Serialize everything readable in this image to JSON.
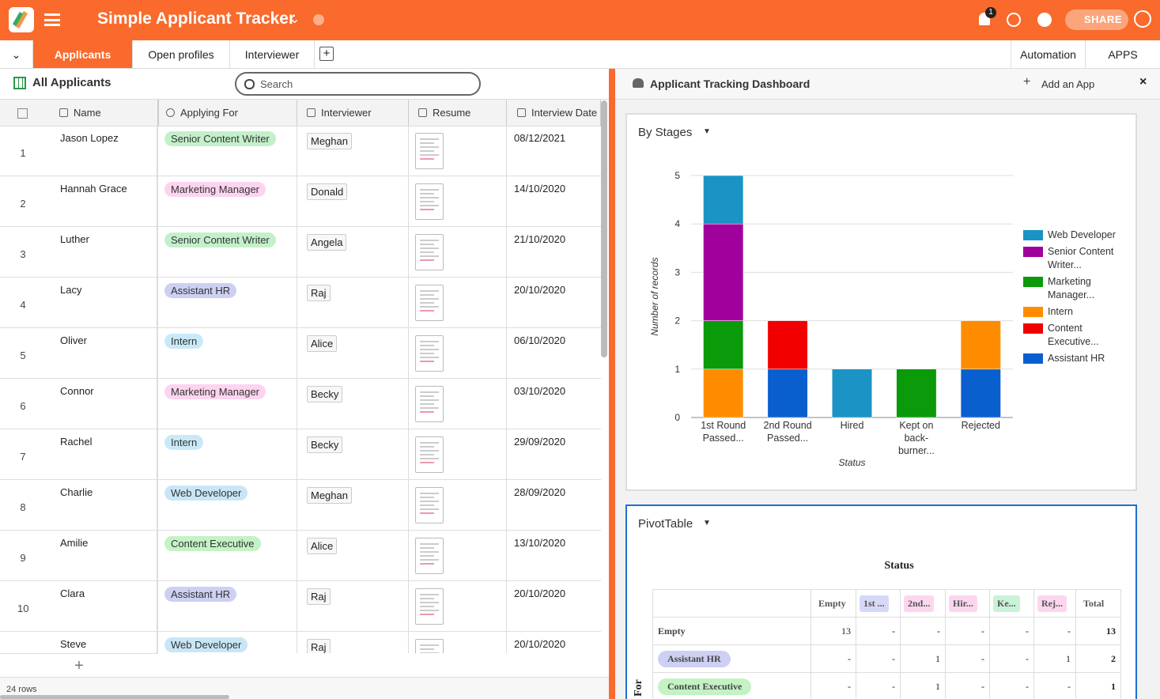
{
  "header": {
    "title": "Simple Applicant Tracker",
    "badge": "1",
    "share": "SHARE"
  },
  "tabs": [
    "Applicants",
    "Open profiles",
    "Interviewer"
  ],
  "right_tabs": [
    "Automation",
    "APPS"
  ],
  "toolbar": {
    "view": "All Applicants",
    "search": "Search"
  },
  "table": {
    "columns": [
      "Name",
      "Applying For",
      "Interviewer",
      "Resume",
      "Interview Date"
    ],
    "rows": [
      {
        "num": "1",
        "name": "Jason Lopez",
        "role": "Senior Content Writer",
        "role_color": "#c3f0cb",
        "interviewer": "Meghan",
        "date": "08/12/2021"
      },
      {
        "num": "2",
        "name": "Hannah Grace",
        "role": "Marketing Manager",
        "role_color": "#fcd4ef",
        "interviewer": "Donald",
        "date": "14/10/2020"
      },
      {
        "num": "3",
        "name": "Luther",
        "role": "Senior Content Writer",
        "role_color": "#c3f0cb",
        "interviewer": "Angela",
        "date": "21/10/2020"
      },
      {
        "num": "4",
        "name": "Lacy",
        "role": "Assistant HR",
        "role_color": "#cdd0f3",
        "interviewer": "Raj",
        "date": "20/10/2020"
      },
      {
        "num": "5",
        "name": "Oliver",
        "role": "Intern",
        "role_color": "#c9e9f8",
        "interviewer": "Alice",
        "date": "06/10/2020"
      },
      {
        "num": "6",
        "name": "Connor",
        "role": "Marketing Manager",
        "role_color": "#fcd4ef",
        "interviewer": "Becky",
        "date": "03/10/2020"
      },
      {
        "num": "7",
        "name": "Rachel",
        "role": "Intern",
        "role_color": "#c9e9f8",
        "interviewer": "Becky",
        "date": "29/09/2020"
      },
      {
        "num": "8",
        "name": "Charlie",
        "role": "Web Developer",
        "role_color": "#c9e6f6",
        "interviewer": "Meghan",
        "date": "28/09/2020"
      },
      {
        "num": "9",
        "name": "Amilie",
        "role": "Content Executive",
        "role_color": "#c4f2c4",
        "interviewer": "Alice",
        "date": "13/10/2020"
      },
      {
        "num": "10",
        "name": "Clara",
        "role": "Assistant HR",
        "role_color": "#cdd0f3",
        "interviewer": "Raj",
        "date": "20/10/2020"
      },
      {
        "name": "Steve",
        "role": "Web Developer",
        "role_color": "#c9e6f6",
        "interviewer": "Raj",
        "date": "20/10/2020"
      }
    ],
    "footer": "24 rows"
  },
  "dashboard": {
    "title": "Applicant Tracking Dashboard",
    "add_app": "Add an App"
  },
  "chart_data": {
    "type": "bar",
    "stacked": true,
    "title": "By Stages",
    "x_label": "Status",
    "y_label": "Number of records",
    "categories": [
      "1st Round Passed...",
      "2nd Round Passed...",
      "Hired",
      "Kept on back-burner...",
      "Rejected"
    ],
    "series": [
      {
        "name": "Web Developer",
        "color": "#1b93c4",
        "values": [
          1,
          0,
          1,
          0,
          0
        ]
      },
      {
        "name": "Senior Content Writer...",
        "color": "#a0009c",
        "values": [
          2,
          0,
          0,
          0,
          0
        ]
      },
      {
        "name": "Marketing Manager...",
        "color": "#0a9a0a",
        "values": [
          1,
          0,
          0,
          1,
          0
        ]
      },
      {
        "name": "Intern",
        "color": "#ff8c00",
        "values": [
          1,
          0,
          0,
          0,
          1
        ]
      },
      {
        "name": "Content Executive...",
        "color": "#f20000",
        "values": [
          0,
          1,
          0,
          0,
          0
        ]
      },
      {
        "name": "Assistant HR",
        "color": "#0a5fcf",
        "values": [
          0,
          1,
          0,
          0,
          1
        ]
      }
    ],
    "ylim": [
      0,
      5
    ],
    "yticks": [
      0,
      1,
      2,
      3,
      4,
      5
    ],
    "grid": true,
    "legend": "right"
  },
  "pivot": {
    "title": "PivotTable",
    "column_title": "Status",
    "row_title": "For",
    "columns": [
      {
        "text": "Empty"
      },
      {
        "text": "1st ...",
        "color": "#d6d8f7"
      },
      {
        "text": "2nd...",
        "color": "#fcd6ef"
      },
      {
        "text": "Hir...",
        "color": "#fcd6ef"
      },
      {
        "text": "Ke...",
        "color": "#c9f2d6"
      },
      {
        "text": "Rej...",
        "color": "#fcd6ef"
      },
      {
        "text": "Total"
      }
    ],
    "rows": [
      {
        "label": "Empty",
        "cells": [
          "13",
          "-",
          "-",
          "-",
          "-",
          "-",
          "13"
        ]
      },
      {
        "label": "Assistant HR",
        "color": "#cdd0f3",
        "cells": [
          "-",
          "-",
          "1",
          "-",
          "-",
          "1",
          "2"
        ]
      },
      {
        "label": "Content Executive",
        "color": "#c4f2c4",
        "cells": [
          "-",
          "-",
          "1",
          "-",
          "-",
          "-",
          "1"
        ]
      }
    ]
  }
}
